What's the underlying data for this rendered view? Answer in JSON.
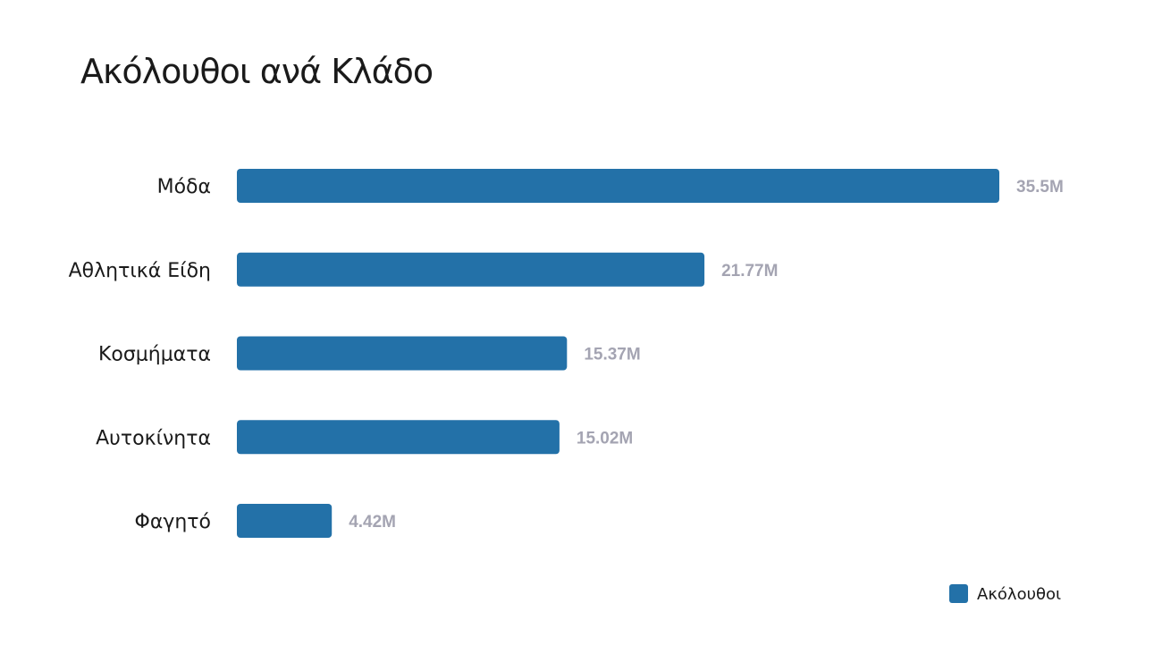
{
  "chart_data": {
    "type": "bar",
    "orientation": "horizontal",
    "title": "Ακόλουθοι ανά Κλάδο",
    "categories": [
      "Μόδα",
      "Αθλητικά Είδη",
      "Κοσμήματα",
      "Αυτοκίνητα",
      "Φαγητό"
    ],
    "series": [
      {
        "name": "Ακόλουθοι",
        "values": [
          35.5,
          21.77,
          15.37,
          15.02,
          4.42
        ],
        "labels": [
          "35.5M",
          "21.77M",
          "15.37M",
          "15.02M",
          "4.42M"
        ],
        "color": "#2371a8"
      }
    ],
    "xlim": [
      0,
      35.5
    ],
    "grid": false,
    "legend_position": "bottom-right",
    "value_label_color": "#a4a4b2"
  }
}
